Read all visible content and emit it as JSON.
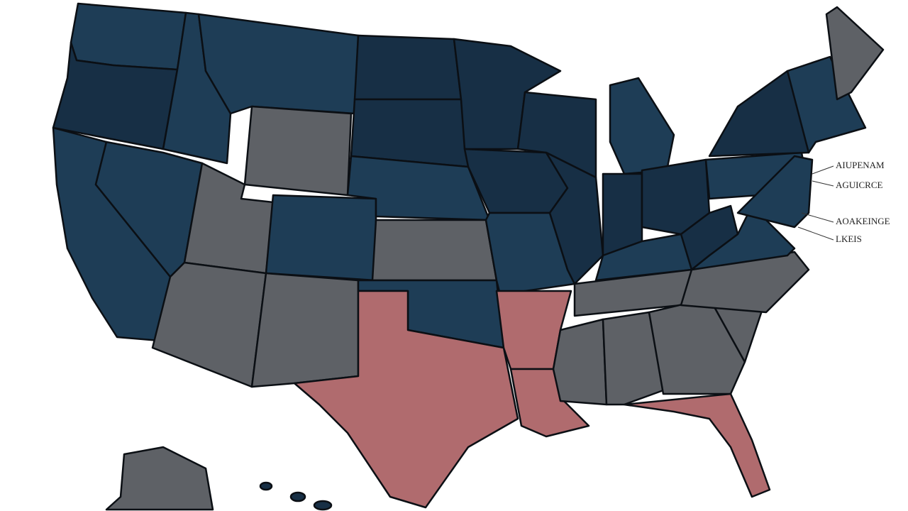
{
  "map": {
    "labels": [
      "AIUPENAM",
      "AGUICRCE",
      "AOAKEINGE",
      "LKEIS"
    ]
  }
}
